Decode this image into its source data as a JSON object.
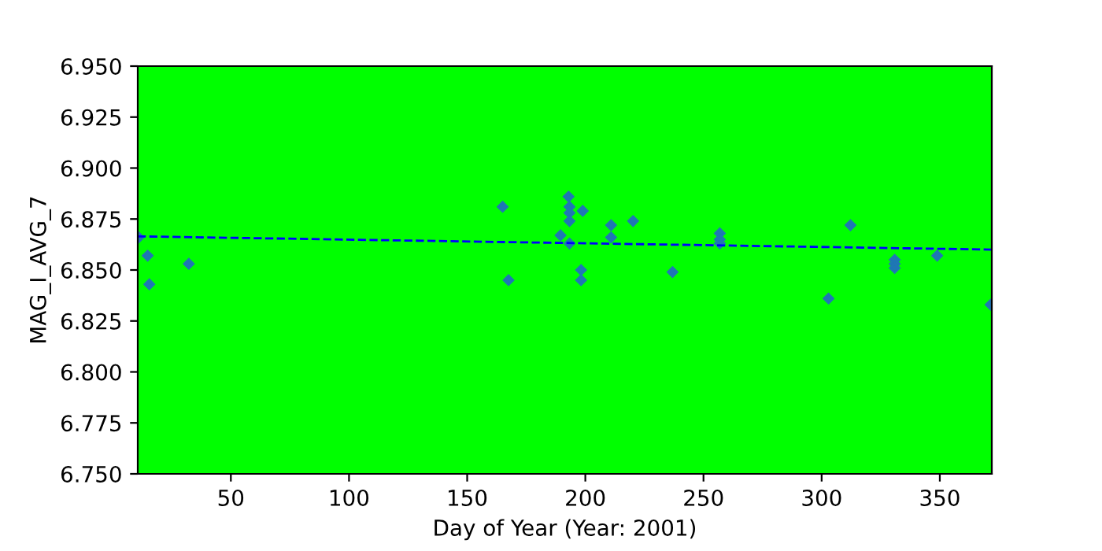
{
  "chart_data": {
    "type": "scatter",
    "xlabel": "Day of Year (Year: 2001)",
    "ylabel": "MAG_I_AVG_7",
    "xlim": [
      10.6,
      372
    ],
    "xticks": [
      50,
      100,
      150,
      200,
      250,
      300,
      350
    ],
    "ylim": [
      6.75,
      6.95
    ],
    "yticks": [
      {
        "value": 6.75,
        "label": "6.750"
      },
      {
        "value": 6.775,
        "label": "6.775"
      },
      {
        "value": 6.8,
        "label": "6.800"
      },
      {
        "value": 6.825,
        "label": "6.825"
      },
      {
        "value": 6.85,
        "label": "6.850"
      },
      {
        "value": 6.875,
        "label": "6.875"
      },
      {
        "value": 6.9,
        "label": "6.900"
      },
      {
        "value": 6.925,
        "label": "6.925"
      },
      {
        "value": 6.95,
        "label": "6.950"
      }
    ],
    "grid": false,
    "series": [
      {
        "color": "#1f77b4",
        "marker": "diamond",
        "x": [
          11,
          14.8,
          15.5,
          32.2,
          165,
          167.5,
          192.9,
          193.3,
          193.3,
          193.3,
          189.5,
          193.3,
          198.9,
          198.2,
          198.2,
          210.9,
          210.9,
          220.2,
          236.9,
          256.9,
          256.9,
          256.9,
          312.2,
          302.9,
          330.9,
          330.9,
          330.9,
          348.9,
          371.5
        ],
        "values": [
          6.866,
          6.857,
          6.843,
          6.853,
          6.881,
          6.845,
          6.886,
          6.881,
          6.878,
          6.874,
          6.867,
          6.863,
          6.879,
          6.85,
          6.845,
          6.872,
          6.866,
          6.874,
          6.849,
          6.868,
          6.865,
          6.863,
          6.872,
          6.836,
          6.855,
          6.853,
          6.851,
          6.857,
          6.833
        ]
      },
      {
        "type": "line",
        "color": "#0000ff",
        "line_style": "dashed",
        "marker": "none",
        "x": [
          10.6,
          372
        ],
        "values": [
          6.8665,
          6.86
        ]
      }
    ]
  }
}
